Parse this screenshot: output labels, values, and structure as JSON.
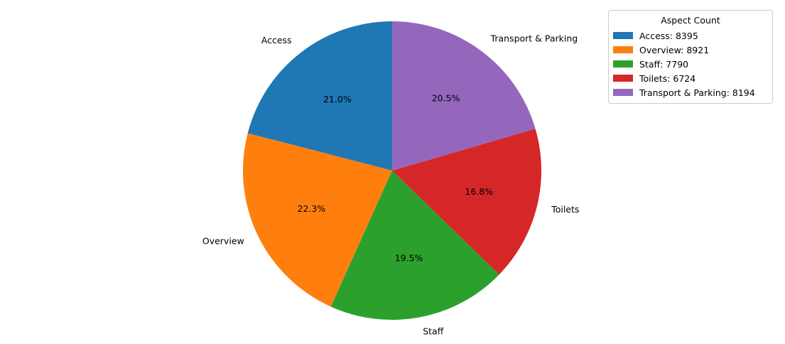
{
  "chart_data": {
    "type": "pie",
    "title": "",
    "categories": [
      "Access",
      "Overview",
      "Staff",
      "Toilets",
      "Transport & Parking"
    ],
    "values": [
      8395,
      8921,
      7790,
      6724,
      8194
    ],
    "percent_labels": [
      "21.0%",
      "22.3%",
      "19.5%",
      "16.8%",
      "20.5%"
    ],
    "colors": [
      "#1f77b4",
      "#ff7f0e",
      "#2ca02c",
      "#d62728",
      "#9467bd"
    ],
    "start_angle_deg": 90,
    "direction": "counterclockwise",
    "legend": {
      "title": "Aspect Count",
      "placement": "top-right",
      "entries": [
        "Access: 8395",
        "Overview: 8921",
        "Staff: 7790",
        "Toilets: 6724",
        "Transport & Parking: 8194"
      ]
    }
  }
}
